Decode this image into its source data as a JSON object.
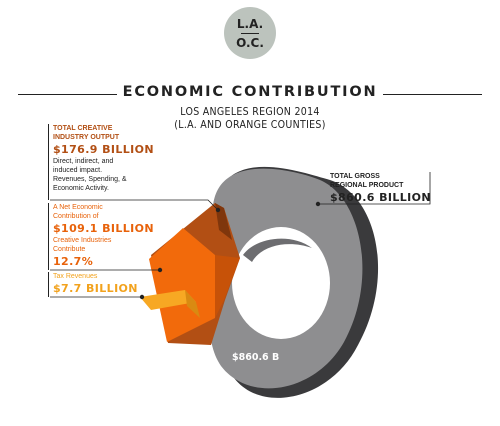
{
  "badge": {
    "top": "L.A.",
    "bottom": "O.C."
  },
  "header": {
    "title": "ECONOMIC CONTRIBUTION",
    "subtitle_line1": "LOS ANGELES REGION 2014",
    "subtitle_line2": "(L.A. AND ORANGE COUNTIES)"
  },
  "callouts": {
    "creative_output": {
      "heading_line1": "TOTAL CREATIVE",
      "heading_line2": "INDUSTRY OUTPUT",
      "value": "$176.9 BILLION",
      "note_line1": "Direct, indirect, and",
      "note_line2": "induced impact.",
      "note_line3": "Revenues, Spending, &",
      "note_line4": "Economic Activity."
    },
    "net_contribution": {
      "label_line1": "A Net Economic",
      "label_line2": "Contribution of",
      "value": "$109.1 BILLION",
      "note_line1": "Creative Industries",
      "note_line2": "Contribute",
      "percent": "12.7%"
    },
    "tax_revenues": {
      "label": "Tax Revenues",
      "value": "$7.7 BILLION"
    },
    "gross_product": {
      "heading_line1": "TOTAL GROSS",
      "heading_line2": "REGIONAL PRODUCT",
      "value": "$860.6 BILLION"
    }
  },
  "donut_label": "$860.6 B",
  "colors": {
    "gray_top": "#8e8e90",
    "gray_side": "#3a3a3c",
    "creative_output": "#b24f14",
    "net_contribution": "#f26a0b",
    "tax_revenues": "#f7a823",
    "creative_text": "#b24f14",
    "net_text": "#e8620a",
    "tax_text": "#f2a21d"
  },
  "chart_data": {
    "type": "pie",
    "title": "ECONOMIC CONTRIBUTION",
    "subtitle": "LOS ANGELES REGION 2014 (L.A. AND ORANGE COUNTIES)",
    "unit": "$ billion",
    "total": {
      "label": "TOTAL GROSS REGIONAL PRODUCT",
      "value": 860.6
    },
    "segments": [
      {
        "label": "TOTAL CREATIVE INDUSTRY OUTPUT",
        "value": 176.9
      },
      {
        "label": "A Net Economic Contribution of",
        "value": 109.1,
        "share_of_total": "12.7%"
      },
      {
        "label": "Tax Revenues",
        "value": 7.7
      }
    ]
  }
}
